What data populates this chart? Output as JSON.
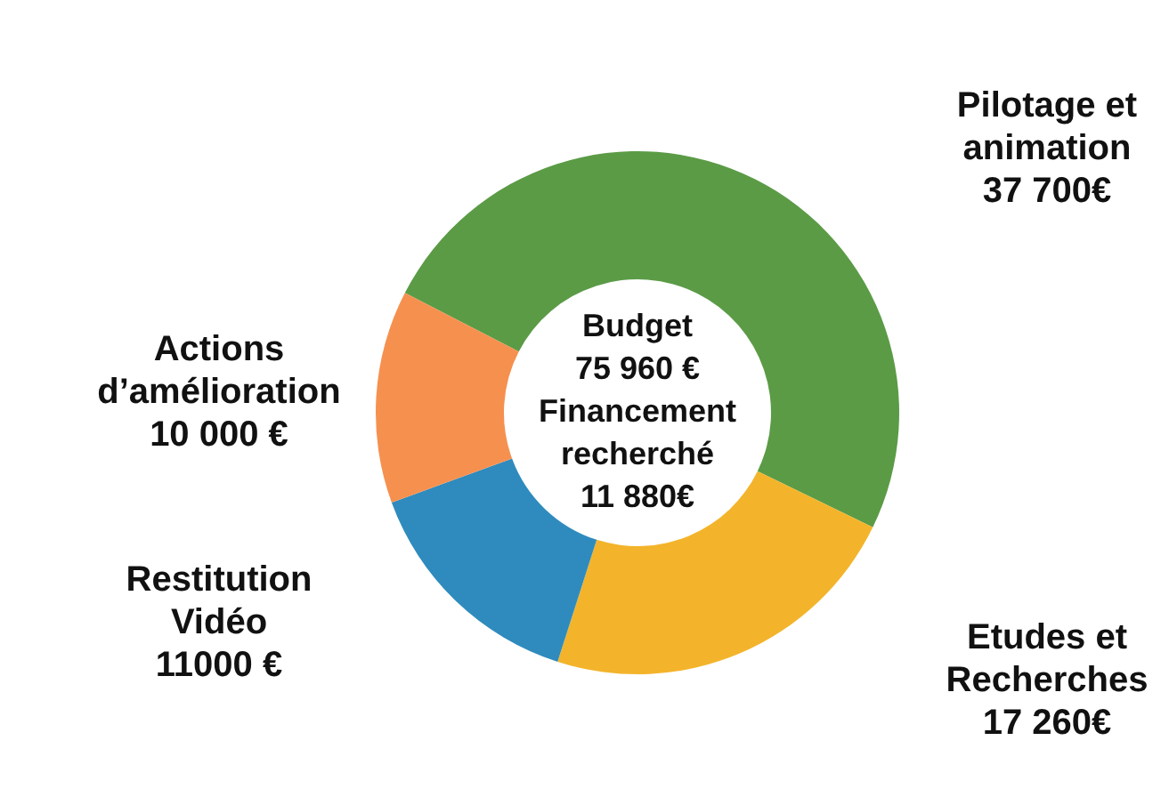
{
  "chart_data": {
    "type": "donut",
    "categories": [
      "Pilotage et animation",
      "Etudes et Recherches",
      "Restitution Vidéo",
      "Actions d’amélioration"
    ],
    "values": [
      37700,
      17260,
      11000,
      10000
    ],
    "colors": [
      "#5b9b46",
      "#f3b42b",
      "#2f8bbd",
      "#f6904f"
    ],
    "value_labels": [
      "37 700€",
      "17 260€",
      "11000 €",
      "10 000 €"
    ],
    "annotations": [
      "Budget",
      "75 960 €",
      "Financement recherché",
      "11 880€"
    ]
  }
}
